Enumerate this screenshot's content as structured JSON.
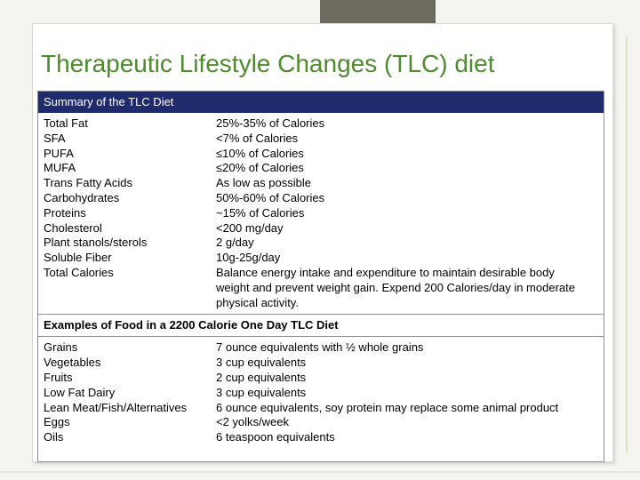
{
  "title": "Therapeutic Lifestyle Changes (TLC) diet",
  "table": {
    "sections": [
      {
        "header": "Summary of the TLC Diet",
        "rows": [
          [
            "Total Fat",
            "25%-35% of Calories"
          ],
          [
            "SFA",
            "<7% of Calories"
          ],
          [
            "PUFA",
            "≤10% of Calories"
          ],
          [
            "MUFA",
            "≤20% of Calories"
          ],
          [
            "Trans Fatty Acids",
            "As low as possible"
          ],
          [
            "Carbohydrates",
            "50%-60% of Calories"
          ],
          [
            "Proteins",
            "~15% of Calories"
          ],
          [
            "Cholesterol",
            "<200 mg/day"
          ],
          [
            "Plant stanols/sterols",
            "2 g/day"
          ],
          [
            "Soluble Fiber",
            "10g-25g/day"
          ],
          [
            "Total Calories",
            "Balance energy intake and expenditure to maintain desirable body weight and prevent weight gain. Expend 200 Calories/day in moderate physical activity."
          ]
        ]
      },
      {
        "header": "Examples of Food in a 2200 Calorie One Day TLC Diet",
        "rows": [
          [
            "Grains",
            "7 ounce equivalents with ½ whole grains"
          ],
          [
            "Vegetables",
            "3 cup equivalents"
          ],
          [
            "Fruits",
            "2 cup equivalents"
          ],
          [
            "Low Fat Dairy",
            "3 cup equivalents"
          ],
          [
            "Lean Meat/Fish/Alternatives",
            "6 ounce equivalents, soy protein may replace some animal product"
          ],
          [
            "Eggs",
            "<2 yolks/week"
          ],
          [
            "Oils",
            "6 teaspoon equivalents"
          ]
        ]
      }
    ]
  }
}
